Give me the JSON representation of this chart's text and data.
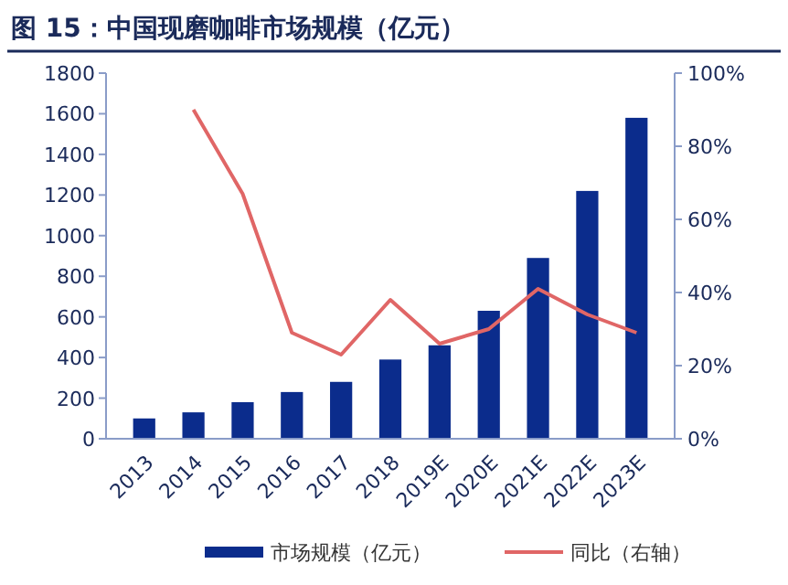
{
  "chart_data": {
    "type": "bar",
    "title": "图 15：中国现磨咖啡市场规模（亿元）",
    "categories": [
      "2013",
      "2014",
      "2015",
      "2016",
      "2017",
      "2018",
      "2019E",
      "2020E",
      "2021E",
      "2022E",
      "2023E"
    ],
    "series": [
      {
        "name": "市场规模（亿元）",
        "color": "#0b2c8c",
        "values": [
          100,
          130,
          180,
          230,
          280,
          390,
          460,
          630,
          890,
          1220,
          1580
        ]
      },
      {
        "name": "同比（右轴）",
        "type": "line",
        "axis": "y2",
        "color": "#e06666",
        "values": [
          null,
          90,
          67,
          29,
          23,
          38,
          26,
          30,
          41,
          34,
          29
        ]
      }
    ],
    "ylim": [
      0,
      1800
    ],
    "yticks": [
      0,
      200,
      400,
      600,
      800,
      1000,
      1200,
      1400,
      1600,
      1800
    ],
    "y2lim": [
      0,
      100
    ],
    "y2ticks": [
      {
        "value": 0,
        "label": "0%"
      },
      {
        "value": 20,
        "label": "20%"
      },
      {
        "value": 40,
        "label": "40%"
      },
      {
        "value": 60,
        "label": "60%"
      },
      {
        "value": 80,
        "label": "80%"
      },
      {
        "value": 100,
        "label": "100%"
      }
    ],
    "legend": "bottom",
    "grid": false,
    "marker": "none",
    "line_style": "solid"
  }
}
